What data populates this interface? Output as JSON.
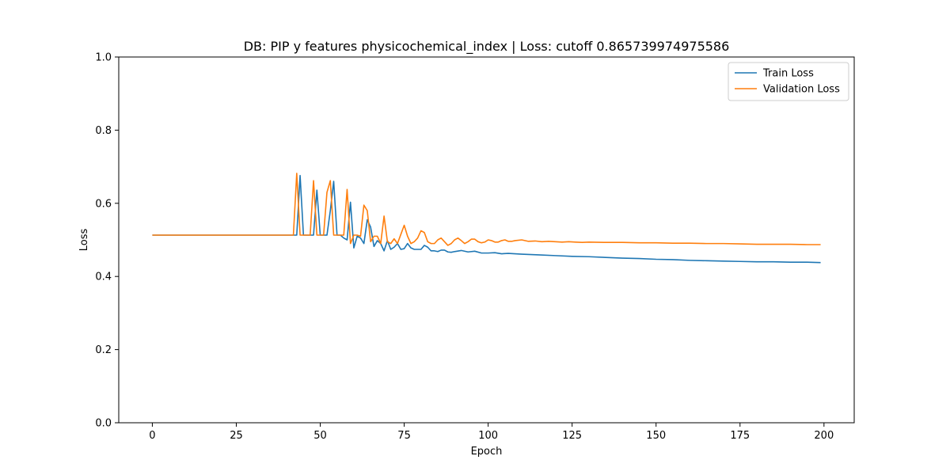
{
  "chart_data": {
    "type": "line",
    "title": "DB: PIP y features physicochemical_index | Loss: cutoff 0.865739974975586",
    "xlabel": "Epoch",
    "ylabel": "Loss",
    "xlim": [
      -10,
      209
    ],
    "ylim": [
      0,
      1
    ],
    "xticks": [
      0,
      25,
      50,
      75,
      100,
      125,
      150,
      175,
      200
    ],
    "xtick_labels": [
      "0",
      "25",
      "50",
      "75",
      "100",
      "125",
      "150",
      "175",
      "200"
    ],
    "yticks": [
      0,
      0.2,
      0.4,
      0.6,
      0.8,
      1
    ],
    "ytick_labels": [
      "0.0",
      "0.2",
      "0.4",
      "0.6",
      "0.8",
      "1.0"
    ],
    "grid": false,
    "legend_position": "top-right",
    "series": [
      {
        "name": "Train Loss",
        "color": "#1f77b4",
        "points": [
          [
            0,
            0.513
          ],
          [
            42,
            0.513
          ],
          [
            43,
            0.513
          ],
          [
            44,
            0.676
          ],
          [
            45,
            0.513
          ],
          [
            47,
            0.513
          ],
          [
            48,
            0.513
          ],
          [
            49,
            0.636
          ],
          [
            50,
            0.513
          ],
          [
            51,
            0.513
          ],
          [
            52,
            0.513
          ],
          [
            53,
            0.58
          ],
          [
            54,
            0.66
          ],
          [
            55,
            0.513
          ],
          [
            56,
            0.513
          ],
          [
            57,
            0.505
          ],
          [
            58,
            0.5
          ],
          [
            59,
            0.603
          ],
          [
            60,
            0.478
          ],
          [
            61,
            0.51
          ],
          [
            62,
            0.505
          ],
          [
            63,
            0.49
          ],
          [
            64,
            0.555
          ],
          [
            65,
            0.535
          ],
          [
            66,
            0.482
          ],
          [
            67,
            0.498
          ],
          [
            68,
            0.49
          ],
          [
            69,
            0.47
          ],
          [
            70,
            0.498
          ],
          [
            71,
            0.474
          ],
          [
            72,
            0.48
          ],
          [
            73,
            0.49
          ],
          [
            74,
            0.474
          ],
          [
            75,
            0.476
          ],
          [
            76,
            0.49
          ],
          [
            77,
            0.478
          ],
          [
            78,
            0.474
          ],
          [
            79,
            0.474
          ],
          [
            80,
            0.474
          ],
          [
            81,
            0.485
          ],
          [
            82,
            0.48
          ],
          [
            83,
            0.47
          ],
          [
            84,
            0.47
          ],
          [
            85,
            0.468
          ],
          [
            86,
            0.472
          ],
          [
            87,
            0.472
          ],
          [
            88,
            0.467
          ],
          [
            89,
            0.466
          ],
          [
            90,
            0.468
          ],
          [
            92,
            0.471
          ],
          [
            94,
            0.467
          ],
          [
            96,
            0.469
          ],
          [
            98,
            0.464
          ],
          [
            100,
            0.464
          ],
          [
            102,
            0.465
          ],
          [
            104,
            0.462
          ],
          [
            106,
            0.463
          ],
          [
            110,
            0.461
          ],
          [
            115,
            0.459
          ],
          [
            120,
            0.457
          ],
          [
            125,
            0.455
          ],
          [
            130,
            0.454
          ],
          [
            135,
            0.452
          ],
          [
            140,
            0.45
          ],
          [
            145,
            0.449
          ],
          [
            150,
            0.447
          ],
          [
            155,
            0.446
          ],
          [
            160,
            0.444
          ],
          [
            165,
            0.443
          ],
          [
            170,
            0.442
          ],
          [
            175,
            0.441
          ],
          [
            180,
            0.44
          ],
          [
            185,
            0.44
          ],
          [
            190,
            0.439
          ],
          [
            195,
            0.439
          ],
          [
            199,
            0.438
          ]
        ]
      },
      {
        "name": "Validation Loss",
        "color": "#ff7f0e",
        "points": [
          [
            0,
            0.513
          ],
          [
            42,
            0.513
          ],
          [
            43,
            0.682
          ],
          [
            44,
            0.513
          ],
          [
            46,
            0.513
          ],
          [
            47,
            0.513
          ],
          [
            48,
            0.662
          ],
          [
            49,
            0.513
          ],
          [
            50,
            0.513
          ],
          [
            51,
            0.513
          ],
          [
            52,
            0.63
          ],
          [
            53,
            0.662
          ],
          [
            54,
            0.513
          ],
          [
            55,
            0.513
          ],
          [
            56,
            0.513
          ],
          [
            57,
            0.513
          ],
          [
            58,
            0.638
          ],
          [
            59,
            0.49
          ],
          [
            60,
            0.513
          ],
          [
            61,
            0.513
          ],
          [
            62,
            0.51
          ],
          [
            63,
            0.595
          ],
          [
            64,
            0.58
          ],
          [
            65,
            0.495
          ],
          [
            66,
            0.51
          ],
          [
            67,
            0.51
          ],
          [
            68,
            0.49
          ],
          [
            69,
            0.565
          ],
          [
            70,
            0.495
          ],
          [
            71,
            0.49
          ],
          [
            72,
            0.503
          ],
          [
            73,
            0.49
          ],
          [
            74,
            0.515
          ],
          [
            75,
            0.54
          ],
          [
            76,
            0.51
          ],
          [
            77,
            0.49
          ],
          [
            78,
            0.495
          ],
          [
            79,
            0.505
          ],
          [
            80,
            0.525
          ],
          [
            81,
            0.52
          ],
          [
            82,
            0.495
          ],
          [
            83,
            0.49
          ],
          [
            84,
            0.49
          ],
          [
            85,
            0.5
          ],
          [
            86,
            0.505
          ],
          [
            87,
            0.495
          ],
          [
            88,
            0.485
          ],
          [
            89,
            0.49
          ],
          [
            90,
            0.5
          ],
          [
            91,
            0.505
          ],
          [
            92,
            0.498
          ],
          [
            93,
            0.49
          ],
          [
            94,
            0.495
          ],
          [
            95,
            0.502
          ],
          [
            96,
            0.502
          ],
          [
            97,
            0.495
          ],
          [
            98,
            0.492
          ],
          [
            99,
            0.494
          ],
          [
            100,
            0.5
          ],
          [
            101,
            0.498
          ],
          [
            102,
            0.494
          ],
          [
            103,
            0.494
          ],
          [
            104,
            0.498
          ],
          [
            105,
            0.5
          ],
          [
            106,
            0.496
          ],
          [
            107,
            0.496
          ],
          [
            108,
            0.498
          ],
          [
            110,
            0.5
          ],
          [
            112,
            0.496
          ],
          [
            114,
            0.497
          ],
          [
            116,
            0.495
          ],
          [
            118,
            0.496
          ],
          [
            120,
            0.495
          ],
          [
            122,
            0.494
          ],
          [
            124,
            0.495
          ],
          [
            126,
            0.494
          ],
          [
            128,
            0.493
          ],
          [
            130,
            0.494
          ],
          [
            135,
            0.493
          ],
          [
            140,
            0.493
          ],
          [
            145,
            0.492
          ],
          [
            150,
            0.492
          ],
          [
            155,
            0.491
          ],
          [
            160,
            0.491
          ],
          [
            165,
            0.49
          ],
          [
            170,
            0.49
          ],
          [
            175,
            0.489
          ],
          [
            180,
            0.488
          ],
          [
            185,
            0.488
          ],
          [
            190,
            0.488
          ],
          [
            195,
            0.487
          ],
          [
            199,
            0.487
          ]
        ]
      }
    ]
  }
}
